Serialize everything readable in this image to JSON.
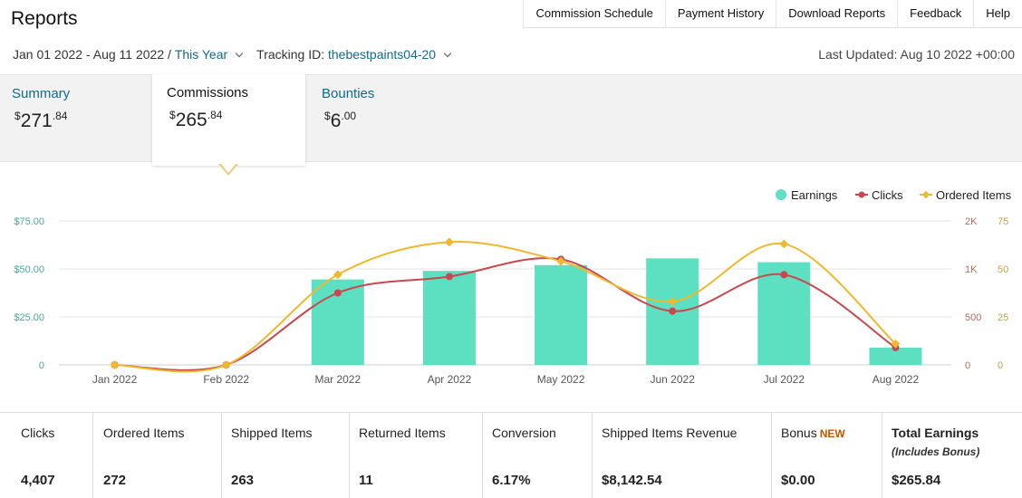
{
  "page": {
    "title": "Reports"
  },
  "topnav": [
    {
      "label": "Commission Schedule"
    },
    {
      "label": "Payment History"
    },
    {
      "label": "Download Reports"
    },
    {
      "label": "Feedback"
    },
    {
      "label": "Help"
    }
  ],
  "filters": {
    "date_range": "Jan 01 2022 - Aug 11 2022 /",
    "period": "This Year",
    "tracking_label": "Tracking ID:",
    "tracking_id": "thebestpaints04-20",
    "last_updated": "Last Updated: Aug 10 2022 +00:00"
  },
  "tabs": [
    {
      "label": "Summary",
      "dollars": "271",
      "cents": ".84",
      "currency": "$",
      "active": false
    },
    {
      "label": "Commissions",
      "dollars": "265",
      "cents": ".84",
      "currency": "$",
      "active": true
    },
    {
      "label": "Bounties",
      "dollars": "6",
      "cents": ".00",
      "currency": "$",
      "active": false
    }
  ],
  "chart_data": {
    "type": "bar",
    "categories": [
      "Jan 2022",
      "Feb 2022",
      "Mar 2022",
      "Apr 2022",
      "May 2022",
      "Jun 2022",
      "Jul 2022",
      "Aug 2022"
    ],
    "series": [
      {
        "name": "Earnings",
        "type": "bar",
        "axis": "left",
        "color": "#5ce0c1",
        "values": [
          0,
          0,
          44.5,
          49,
          52,
          55.5,
          53.5,
          9
        ]
      },
      {
        "name": "Clicks",
        "type": "line",
        "axis": "right1",
        "color": "#c8484e",
        "values": [
          0,
          0,
          750,
          920,
          1100,
          560,
          940,
          180
        ]
      },
      {
        "name": "Ordered Items",
        "type": "line",
        "axis": "right2",
        "color": "#efb92d",
        "values": [
          0,
          0,
          47,
          64,
          54,
          33,
          63,
          11
        ]
      }
    ],
    "axes": {
      "left": {
        "ticks": [
          "0",
          "$25.00",
          "$50.00",
          "$75.00"
        ],
        "range": [
          0,
          75
        ]
      },
      "right1": {
        "ticks": [
          "0",
          "500",
          "1K",
          "2K"
        ],
        "range": [
          0,
          1500
        ]
      },
      "right2": {
        "ticks": [
          "0",
          "25",
          "50",
          "75"
        ],
        "range": [
          0,
          75
        ]
      }
    },
    "legend_position": "top-right",
    "grid": true
  },
  "stats": [
    {
      "label": "Clicks",
      "value": "4,407"
    },
    {
      "label": "Ordered Items",
      "value": "272"
    },
    {
      "label": "Shipped Items",
      "value": "263"
    },
    {
      "label": "Returned Items",
      "value": "11"
    },
    {
      "label": "Conversion",
      "value": "6.17%"
    },
    {
      "label": "Shipped Items Revenue",
      "value": "$8,142.54"
    },
    {
      "label": "Bonus",
      "badge": "NEW",
      "value": "$0.00"
    },
    {
      "label": "Total Earnings",
      "sublabel": "(Includes Bonus)",
      "value": "$265.84"
    }
  ]
}
